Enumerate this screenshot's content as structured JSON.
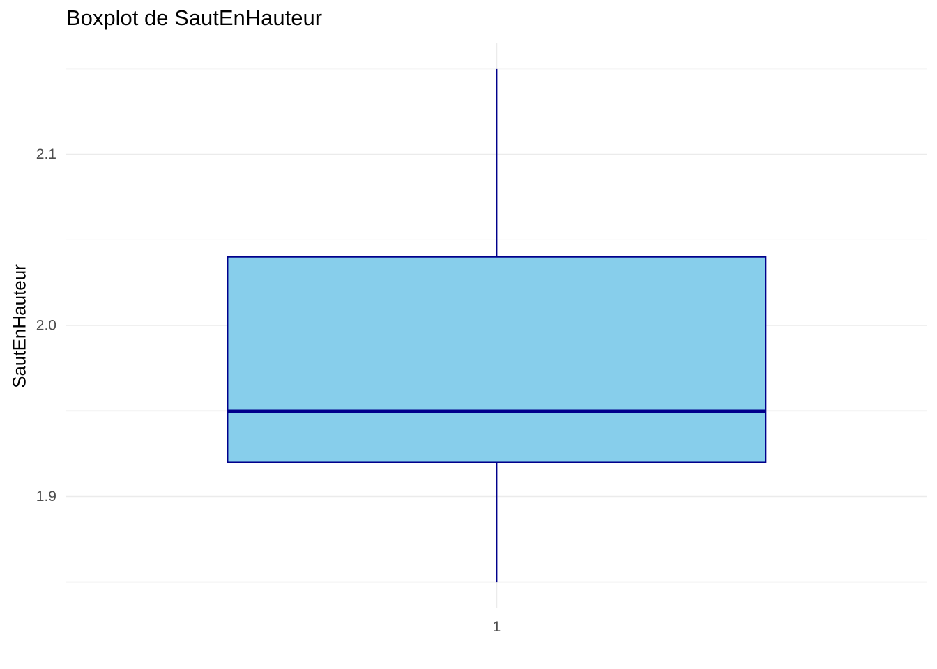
{
  "chart_data": {
    "type": "boxplot",
    "title": "Boxplot de SautEnHauteur",
    "xlabel": "",
    "ylabel": "SautEnHauteur",
    "categories": [
      "1"
    ],
    "boxes": [
      {
        "category": "1",
        "whisker_low": 1.85,
        "q1": 1.92,
        "median": 1.95,
        "q3": 2.04,
        "whisker_high": 2.15
      }
    ],
    "ylim": [
      1.835,
      2.165
    ],
    "y_ticks": [
      1.9,
      2.0,
      2.1
    ],
    "y_tick_labels": [
      "1.9",
      "2.0",
      "2.1"
    ],
    "y_minor_ticks": [
      1.85,
      1.95,
      2.05,
      2.15
    ],
    "grid": true,
    "colors": {
      "box_fill": "#87CEEB",
      "box_outline": "#00008B",
      "grid_major": "#EBEBEB",
      "grid_minor": "#F2F2F2",
      "tick_label": "#4D4D4D"
    }
  }
}
